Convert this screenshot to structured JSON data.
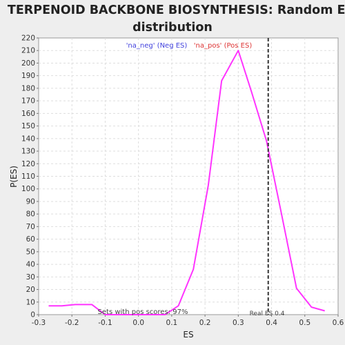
{
  "chart_data": {
    "type": "line",
    "title_line1": "TERPENOID BACKBONE BIOSYNTHESIS: Random ES",
    "title_line2": "distribution",
    "xlabel": "ES",
    "ylabel": "P(ES)",
    "xlim": [
      -0.3,
      0.6
    ],
    "ylim": [
      0,
      220
    ],
    "x_ticks": [
      -0.3,
      -0.2,
      -0.1,
      0.0,
      0.1,
      0.2,
      0.3,
      0.4,
      0.5,
      0.6
    ],
    "x_tick_labels": [
      "-0.3",
      "-0.2",
      "-0.1",
      "0.0",
      "0.1",
      "0.2",
      "0.3",
      "0.4",
      "0.5",
      "0.6"
    ],
    "y_ticks": [
      0,
      10,
      20,
      30,
      40,
      50,
      60,
      70,
      80,
      90,
      100,
      110,
      120,
      130,
      140,
      150,
      160,
      170,
      180,
      190,
      200,
      210,
      220
    ],
    "y_tick_labels": [
      "0",
      "10",
      "20",
      "30",
      "40",
      "50",
      "60",
      "70",
      "80",
      "90",
      "100",
      "110",
      "120",
      "130",
      "140",
      "150",
      "160",
      "170",
      "180",
      "190",
      "200",
      "210",
      "220"
    ],
    "grid": true,
    "legend": {
      "placement": "top-center",
      "neg_label": "'na_neg' (Neg ES)",
      "pos_label": "'na_pos' (Pos ES)",
      "neg_color": "#4040dd",
      "pos_color": "#dd3333"
    },
    "series": [
      {
        "color": "#ff33ff",
        "x": [
          -0.27,
          -0.23,
          -0.19,
          -0.14,
          -0.1,
          0.08,
          0.12,
          0.165,
          0.21,
          0.25,
          0.3,
          0.34,
          0.385,
          0.43,
          0.475,
          0.52,
          0.56
        ],
        "y": [
          7,
          7,
          8,
          8,
          0,
          0,
          7,
          36,
          103,
          186,
          210,
          177,
          138,
          80,
          21,
          6,
          3
        ]
      }
    ],
    "annotations": {
      "pos_scores_text": "Sets with pos scores: 97%",
      "real_es_text": "Real ES 0.4",
      "real_es_value": 0.39,
      "real_es_line_color": "#333333"
    }
  }
}
